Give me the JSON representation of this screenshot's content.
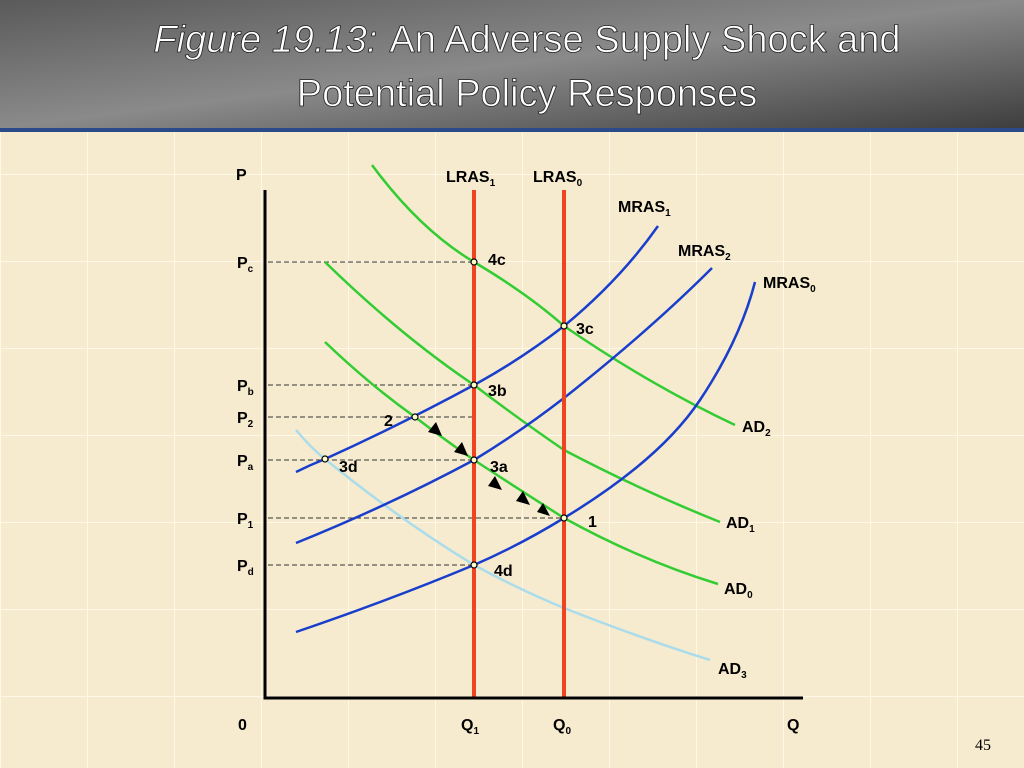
{
  "title": {
    "label": "Figure 19.13:",
    "line1": "An Adverse Supply Shock and",
    "line2": "Potential Policy Responses"
  },
  "axes": {
    "y": "P",
    "x": "Q",
    "origin": "0"
  },
  "price_levels": [
    {
      "text": "P",
      "sub": "c"
    },
    {
      "text": "P",
      "sub": "b"
    },
    {
      "text": "P",
      "sub": "2"
    },
    {
      "text": "P",
      "sub": "a"
    },
    {
      "text": "P",
      "sub": "1"
    },
    {
      "text": "P",
      "sub": "d"
    }
  ],
  "quantity_levels": [
    {
      "text": "Q",
      "sub": "1"
    },
    {
      "text": "Q",
      "sub": "0"
    }
  ],
  "curves": [
    {
      "text": "LRAS",
      "sub": "1"
    },
    {
      "text": "LRAS",
      "sub": "0"
    },
    {
      "text": "MRAS",
      "sub": "1"
    },
    {
      "text": "MRAS",
      "sub": "2"
    },
    {
      "text": "MRAS",
      "sub": "0"
    },
    {
      "text": "AD",
      "sub": "2"
    },
    {
      "text": "AD",
      "sub": "1"
    },
    {
      "text": "AD",
      "sub": "0"
    },
    {
      "text": "AD",
      "sub": "3"
    }
  ],
  "points": [
    "4c",
    "3c",
    "3b",
    "2",
    "3a",
    "3d",
    "1",
    "4d"
  ],
  "page_number": "45"
}
